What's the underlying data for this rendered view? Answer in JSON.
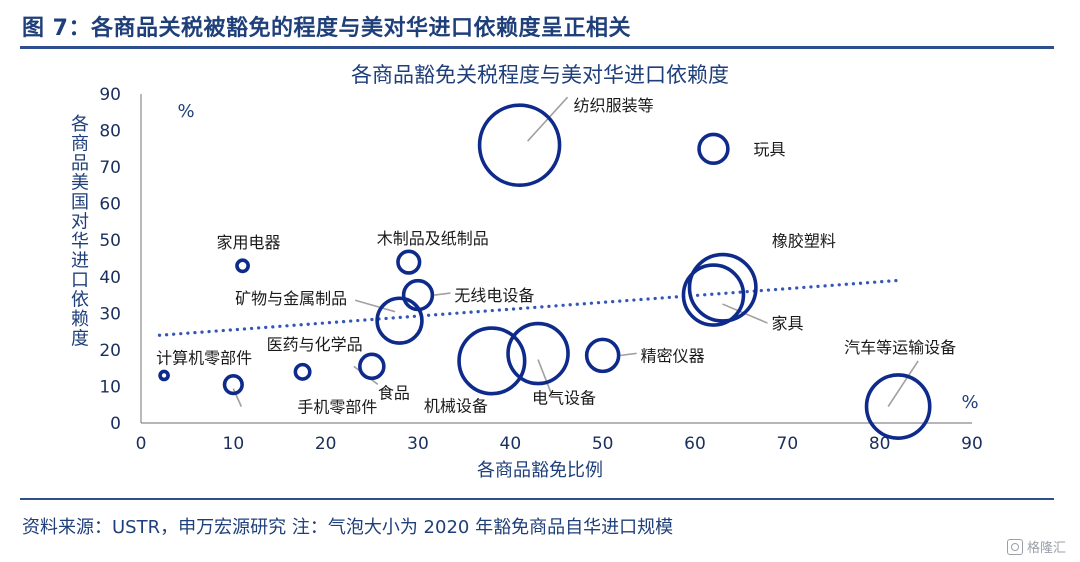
{
  "header": {
    "title": "图 7：各商品关税被豁免的程度与美对华进口依赖度呈正相关"
  },
  "footer": {
    "source": "资料来源：USTR，申万宏源研究 注：气泡大小为 2020 年豁免商品自华进口规模",
    "watermark": "格隆汇"
  },
  "colors": {
    "bubble": "#0e2a8a",
    "trend": "#3456b6",
    "text_blue": "#1f3f7a",
    "leader": "#a0a0a0"
  },
  "chart_data": {
    "type": "bubble",
    "title": "各商品豁免关税程度与美对华进口依赖度",
    "xlabel": "各商品豁免比例",
    "ylabel": "各商品美国对华进口依赖度",
    "x_unit": "%",
    "y_unit": "%",
    "xlim": [
      0,
      90
    ],
    "ylim": [
      0,
      90
    ],
    "xticks": [
      0,
      10,
      20,
      30,
      40,
      50,
      60,
      70,
      80,
      90
    ],
    "yticks": [
      0,
      10,
      20,
      30,
      40,
      50,
      60,
      70,
      80,
      90
    ],
    "trendline": {
      "style": "dotted",
      "points": [
        [
          2,
          24
        ],
        [
          82,
          39
        ]
      ]
    },
    "points": [
      {
        "name": "纺织服装等",
        "x": 41,
        "y": 76,
        "size": 1.0,
        "label_anchor": "above-right"
      },
      {
        "name": "玩具",
        "x": 62,
        "y": 75,
        "size": 0.36,
        "label_anchor": "right"
      },
      {
        "name": "橡胶塑料",
        "x": 63,
        "y": 37,
        "size": 0.83,
        "label_anchor": "above-right"
      },
      {
        "name": "家具",
        "x": 62,
        "y": 35,
        "size": 0.75,
        "label_anchor": "below-right"
      },
      {
        "name": "家用电器",
        "x": 11,
        "y": 43,
        "size": 0.14,
        "label_anchor": "above"
      },
      {
        "name": "木制品及纸制品",
        "x": 29,
        "y": 44,
        "size": 0.27,
        "label_anchor": "above"
      },
      {
        "name": "无线电设备",
        "x": 30,
        "y": 35,
        "size": 0.36,
        "label_anchor": "right"
      },
      {
        "name": "矿物与金属制品",
        "x": 28,
        "y": 28,
        "size": 0.56,
        "label_anchor": "left"
      },
      {
        "name": "计算机零部件",
        "x": 2.5,
        "y": 13,
        "size": 0.1,
        "label_anchor": "above"
      },
      {
        "name": "医药与化学品",
        "x": 17.5,
        "y": 14,
        "size": 0.18,
        "label_anchor": "above"
      },
      {
        "name": "手机零部件",
        "x": 10,
        "y": 10.5,
        "size": 0.22,
        "label_anchor": "below-right"
      },
      {
        "name": "食品",
        "x": 25,
        "y": 15.5,
        "size": 0.3,
        "label_anchor": "below"
      },
      {
        "name": "机械设备",
        "x": 38,
        "y": 17,
        "size": 0.82,
        "label_anchor": "below-left"
      },
      {
        "name": "电气设备",
        "x": 43,
        "y": 19,
        "size": 0.75,
        "label_anchor": "below"
      },
      {
        "name": "精密仪器",
        "x": 50,
        "y": 18.5,
        "size": 0.4,
        "label_anchor": "right"
      },
      {
        "name": "汽车等运输设备",
        "x": 82,
        "y": 4.5,
        "size": 0.79,
        "label_anchor": "above"
      }
    ]
  }
}
